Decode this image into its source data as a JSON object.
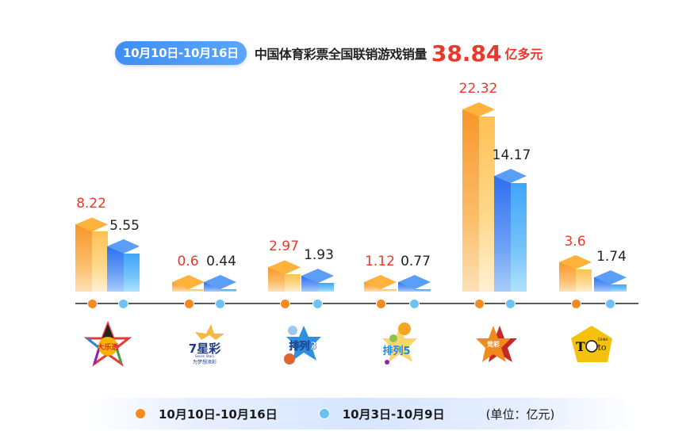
{
  "header": {
    "date_range": "10月10日-10月16日",
    "title": "中国体育彩票全国联销游戏销量",
    "total": "38.84",
    "total_unit": "亿多元"
  },
  "colors": {
    "current": "#f6891f",
    "previous": "#6cc2f5",
    "accent_red": "#e8392b",
    "pill_blue": "#4a97f8"
  },
  "legend": {
    "current_label": "10月10日-10月16日",
    "previous_label": "10月3日-10月9日",
    "unit_note": "(单位：亿元)"
  },
  "games": [
    {
      "name": "大乐透",
      "icon": "daletou-logo",
      "current": "8.22",
      "previous": "5.55"
    },
    {
      "name": "7星彩",
      "icon": "qixingcai-logo",
      "current": "0.6",
      "previous": "0.44"
    },
    {
      "name": "排列3",
      "icon": "pailie3-logo",
      "current": "2.97",
      "previous": "1.93"
    },
    {
      "name": "排列5",
      "icon": "pailie5-logo",
      "current": "1.12",
      "previous": "0.77"
    },
    {
      "name": "竞彩",
      "icon": "jingcai-logo",
      "current": "22.32",
      "previous": "14.17"
    },
    {
      "name": "胜负彩(Toto)",
      "icon": "toto-logo",
      "current": "3.6",
      "previous": "1.74"
    }
  ],
  "chart_data": {
    "type": "bar",
    "title": "10月10日-10月16日 中国体育彩票全国联销游戏销量 38.84亿多元",
    "categories": [
      "大乐透",
      "7星彩",
      "排列3",
      "排列5",
      "竞彩",
      "胜负彩(Toto)"
    ],
    "series": [
      {
        "name": "10月10日-10月16日",
        "values": [
          8.22,
          0.6,
          2.97,
          1.12,
          22.32,
          3.6
        ],
        "color": "#f6891f"
      },
      {
        "name": "10月3日-10月9日",
        "values": [
          5.55,
          0.44,
          1.93,
          0.77,
          14.17,
          1.74
        ],
        "color": "#6cc2f5"
      }
    ],
    "xlabel": "",
    "ylabel": "亿元",
    "unit": "亿元",
    "grid": false,
    "legend_position": "bottom",
    "data_labels": true,
    "style": "3d-isometric bars with product logos below axis"
  }
}
